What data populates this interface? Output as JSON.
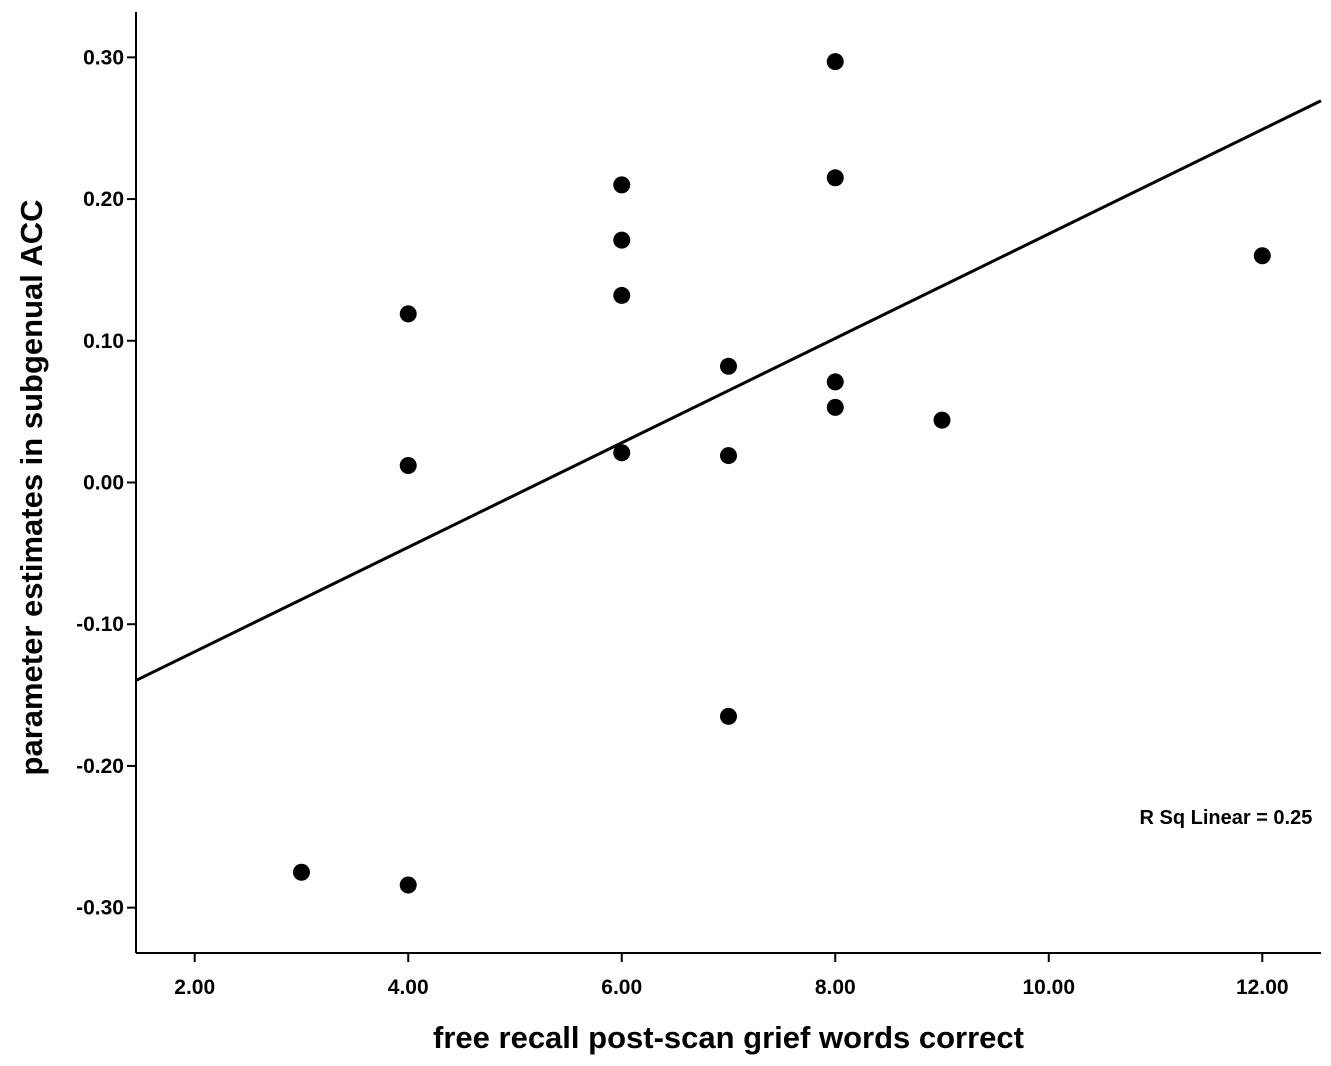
{
  "chart_data": {
    "type": "scatter",
    "title": "",
    "xlabel": "free recall post-scan grief words correct",
    "ylabel": "parameter estimates in subgenual ACC",
    "xlim": [
      1.45,
      12.55
    ],
    "ylim": [
      -0.332,
      0.332
    ],
    "x_ticks": [
      2,
      4,
      6,
      8,
      10,
      12
    ],
    "x_tick_labels": [
      "2.00",
      "4.00",
      "6.00",
      "8.00",
      "10.00",
      "12.00"
    ],
    "y_ticks": [
      0.3,
      0.2,
      0.1,
      0.0,
      -0.1,
      -0.2,
      -0.3
    ],
    "y_tick_labels": [
      "0.30",
      "0.20",
      "0.10",
      "0.00",
      "-0.10",
      "-0.20",
      "-0.30"
    ],
    "grid": false,
    "legend": "none",
    "marker_color": "#000000",
    "series": [
      {
        "points": [
          {
            "x": 3,
            "y": -0.275
          },
          {
            "x": 4,
            "y": 0.119
          },
          {
            "x": 4,
            "y": 0.012
          },
          {
            "x": 4,
            "y": -0.284
          },
          {
            "x": 6,
            "y": 0.21
          },
          {
            "x": 6,
            "y": 0.171
          },
          {
            "x": 6,
            "y": 0.132
          },
          {
            "x": 6,
            "y": 0.021
          },
          {
            "x": 7,
            "y": 0.082
          },
          {
            "x": 7,
            "y": 0.019
          },
          {
            "x": 7,
            "y": -0.165
          },
          {
            "x": 8,
            "y": 0.297
          },
          {
            "x": 8,
            "y": 0.215
          },
          {
            "x": 8,
            "y": 0.071
          },
          {
            "x": 8,
            "y": 0.053
          },
          {
            "x": 9,
            "y": 0.044
          },
          {
            "x": 12,
            "y": 0.16
          }
        ]
      }
    ],
    "fit_line": {
      "type": "linear",
      "slope": 0.03685,
      "intercept": -0.1931
    },
    "annotations": [
      {
        "text": "R Sq Linear = 0.25",
        "x": 10.85,
        "y": -0.241
      }
    ]
  }
}
